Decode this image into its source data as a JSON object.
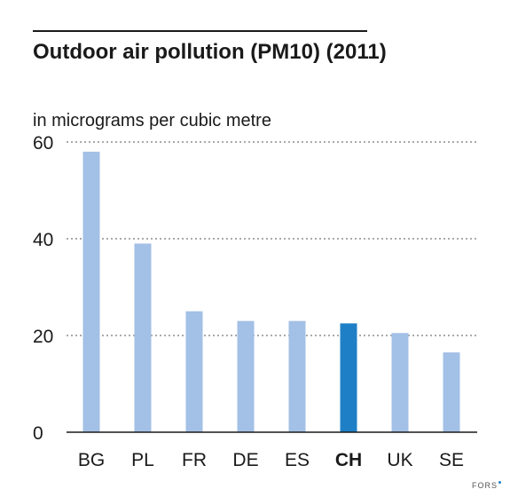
{
  "chart_data": {
    "type": "bar",
    "title": "Outdoor air pollution (PM10) (2011)",
    "ylabel": "in micrograms per cubic metre",
    "xlabel": "",
    "categories": [
      "BG",
      "PL",
      "FR",
      "DE",
      "ES",
      "CH",
      "UK",
      "SE"
    ],
    "values": [
      58,
      39,
      25,
      23,
      23,
      22.5,
      20.5,
      16.5
    ],
    "highlight": "CH",
    "ylim": [
      0,
      60
    ],
    "yticks": [
      0,
      20,
      40,
      60
    ],
    "grid": true,
    "colors": {
      "bar": "#a3c0e6",
      "highlight": "#1f7fc6",
      "grid": "#555555",
      "axis": "#1a1a1a"
    }
  },
  "source": {
    "label": "FORS"
  }
}
